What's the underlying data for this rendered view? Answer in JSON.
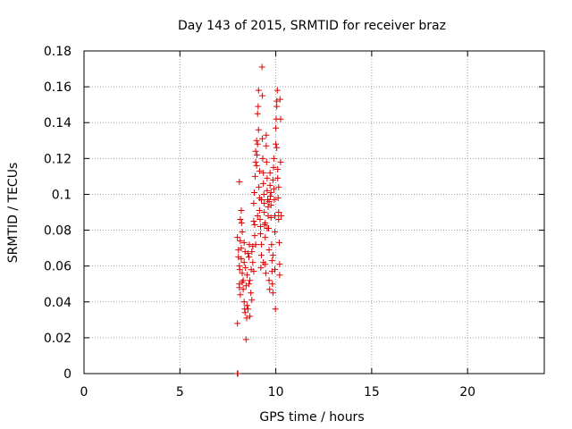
{
  "chart_data": {
    "type": "scatter",
    "title": "Day 143 of 2015, SRMTID for receiver braz",
    "xlabel": "GPS time / hours",
    "ylabel": "SRMTID / TECUs",
    "xlim": [
      0,
      24
    ],
    "ylim": [
      0,
      0.18
    ],
    "xticks": [
      0,
      5,
      10,
      15,
      20
    ],
    "xtick_labels": [
      "0",
      "5",
      "10",
      "15",
      "20"
    ],
    "yticks": [
      0,
      0.02,
      0.04,
      0.06,
      0.08,
      0.1,
      0.12,
      0.14,
      0.16,
      0.18
    ],
    "ytick_labels": [
      "0",
      "0.02",
      "0.04",
      "0.06",
      "0.08",
      "0.1",
      "0.12",
      "0.14",
      "0.16",
      "0.18"
    ],
    "grid": true,
    "marker": "+",
    "color": "#e00000",
    "series": [
      {
        "name": "SRMTID",
        "points": [
          [
            8.0,
            0.0
          ],
          [
            8.0,
            0.0
          ],
          [
            8.0,
            0.0
          ],
          [
            8.02,
            0.0
          ],
          [
            8.0,
            0.028
          ],
          [
            8.1,
            0.107
          ],
          [
            8.1,
            0.05
          ],
          [
            8.1,
            0.048
          ],
          [
            8.0,
            0.076
          ],
          [
            8.05,
            0.065
          ],
          [
            8.1,
            0.06
          ],
          [
            8.12,
            0.058
          ],
          [
            8.15,
            0.086
          ],
          [
            8.2,
            0.091
          ],
          [
            8.15,
            0.074
          ],
          [
            8.2,
            0.07
          ],
          [
            8.22,
            0.084
          ],
          [
            8.25,
            0.079
          ],
          [
            8.2,
            0.064
          ],
          [
            8.25,
            0.051
          ],
          [
            8.3,
            0.052
          ],
          [
            8.3,
            0.047
          ],
          [
            8.35,
            0.04
          ],
          [
            8.38,
            0.036
          ],
          [
            8.4,
            0.034
          ],
          [
            8.35,
            0.062
          ],
          [
            8.4,
            0.068
          ],
          [
            8.42,
            0.059
          ],
          [
            8.45,
            0.019
          ],
          [
            8.48,
            0.031
          ],
          [
            8.5,
            0.038
          ],
          [
            8.5,
            0.055
          ],
          [
            8.55,
            0.067
          ],
          [
            8.6,
            0.065
          ],
          [
            8.62,
            0.072
          ],
          [
            8.6,
            0.05
          ],
          [
            8.65,
            0.032
          ],
          [
            8.7,
            0.045
          ],
          [
            8.72,
            0.058
          ],
          [
            8.75,
            0.041
          ],
          [
            8.8,
            0.062
          ],
          [
            8.8,
            0.071
          ],
          [
            8.85,
            0.085
          ],
          [
            8.85,
            0.095
          ],
          [
            8.88,
            0.101
          ],
          [
            8.9,
            0.083
          ],
          [
            8.9,
            0.077
          ],
          [
            8.92,
            0.11
          ],
          [
            8.95,
            0.118
          ],
          [
            8.95,
            0.124
          ],
          [
            9.0,
            0.116
          ],
          [
            9.0,
            0.13
          ],
          [
            9.02,
            0.122
          ],
          [
            9.05,
            0.128
          ],
          [
            9.05,
            0.145
          ],
          [
            9.08,
            0.149
          ],
          [
            9.1,
            0.158
          ],
          [
            9.1,
            0.136
          ],
          [
            9.12,
            0.104
          ],
          [
            9.15,
            0.098
          ],
          [
            9.15,
            0.091
          ],
          [
            9.18,
            0.086
          ],
          [
            9.2,
            0.082
          ],
          [
            9.2,
            0.078
          ],
          [
            9.22,
            0.059
          ],
          [
            9.25,
            0.066
          ],
          [
            9.25,
            0.072
          ],
          [
            9.28,
            0.171
          ],
          [
            9.3,
            0.155
          ],
          [
            9.3,
            0.131
          ],
          [
            9.32,
            0.12
          ],
          [
            9.35,
            0.112
          ],
          [
            9.35,
            0.106
          ],
          [
            9.38,
            0.1
          ],
          [
            9.4,
            0.095
          ],
          [
            9.4,
            0.09
          ],
          [
            9.42,
            0.083
          ],
          [
            9.45,
            0.076
          ],
          [
            9.45,
            0.061
          ],
          [
            9.48,
            0.056
          ],
          [
            9.5,
            0.133
          ],
          [
            9.5,
            0.127
          ],
          [
            9.52,
            0.118
          ],
          [
            9.55,
            0.109
          ],
          [
            9.55,
            0.102
          ],
          [
            9.58,
            0.097
          ],
          [
            9.6,
            0.093
          ],
          [
            9.6,
            0.088
          ],
          [
            9.62,
            0.081
          ],
          [
            9.65,
            0.069
          ],
          [
            9.65,
            0.052
          ],
          [
            9.68,
            0.047
          ],
          [
            9.7,
            0.112
          ],
          [
            9.7,
            0.105
          ],
          [
            9.72,
            0.099
          ],
          [
            9.75,
            0.094
          ],
          [
            9.75,
            0.087
          ],
          [
            9.78,
            0.072
          ],
          [
            9.8,
            0.063
          ],
          [
            9.8,
            0.057
          ],
          [
            9.82,
            0.05
          ],
          [
            9.85,
            0.045
          ],
          [
            9.85,
            0.108
          ],
          [
            9.88,
            0.115
          ],
          [
            9.9,
            0.12
          ],
          [
            9.9,
            0.103
          ],
          [
            9.92,
            0.097
          ],
          [
            9.95,
            0.088
          ],
          [
            9.95,
            0.079
          ],
          [
            9.98,
            0.036
          ],
          [
            10.0,
            0.128
          ],
          [
            10.0,
            0.137
          ],
          [
            10.02,
            0.142
          ],
          [
            10.05,
            0.149
          ],
          [
            10.05,
            0.152
          ],
          [
            10.08,
            0.158
          ],
          [
            10.1,
            0.114
          ],
          [
            10.1,
            0.109
          ],
          [
            10.12,
            0.098
          ],
          [
            10.15,
            0.09
          ],
          [
            10.15,
            0.086
          ],
          [
            10.18,
            0.073
          ],
          [
            10.2,
            0.061
          ],
          [
            10.2,
            0.055
          ],
          [
            10.22,
            0.153
          ],
          [
            10.25,
            0.142
          ],
          [
            10.25,
            0.118
          ],
          [
            10.28,
            0.088
          ],
          [
            8.05,
            0.069
          ],
          [
            8.15,
            0.044
          ],
          [
            8.25,
            0.056
          ],
          [
            8.35,
            0.073
          ],
          [
            8.45,
            0.049
          ],
          [
            8.55,
            0.036
          ],
          [
            8.65,
            0.052
          ],
          [
            8.75,
            0.068
          ],
          [
            8.85,
            0.057
          ],
          [
            8.95,
            0.072
          ],
          [
            9.05,
            0.088
          ],
          [
            9.15,
            0.113
          ],
          [
            9.25,
            0.097
          ],
          [
            9.35,
            0.062
          ],
          [
            9.45,
            0.084
          ],
          [
            9.55,
            0.081
          ],
          [
            9.65,
            0.096
          ],
          [
            9.75,
            0.101
          ],
          [
            9.85,
            0.066
          ],
          [
            9.95,
            0.058
          ],
          [
            10.05,
            0.126
          ],
          [
            10.15,
            0.104
          ]
        ]
      }
    ]
  }
}
